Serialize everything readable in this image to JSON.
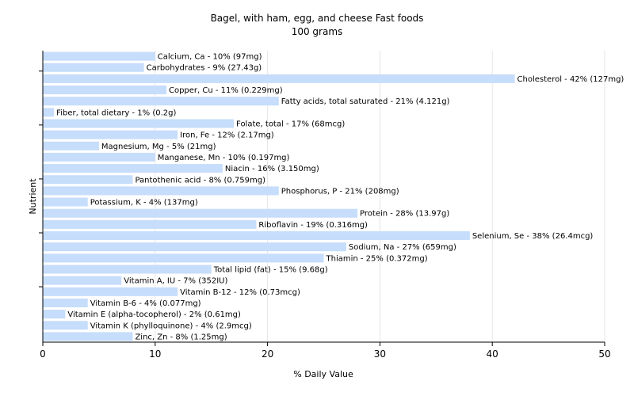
{
  "chart_data": {
    "type": "bar",
    "orientation": "horizontal",
    "title": "Bagel, with ham, egg, and cheese Fast foods",
    "subtitle": "100 grams",
    "xlabel": "% Daily Value",
    "ylabel": "Nutrient",
    "xlim": [
      0,
      50
    ],
    "xticks": [
      0,
      10,
      20,
      30,
      40,
      50
    ],
    "grid": "vertical",
    "bar_color": "#c6ddfb",
    "categories": [
      "Calcium, Ca",
      "Carbohydrates",
      "Cholesterol",
      "Copper, Cu",
      "Fatty acids, total saturated",
      "Fiber, total dietary",
      "Folate, total",
      "Iron, Fe",
      "Magnesium, Mg",
      "Manganese, Mn",
      "Niacin",
      "Pantothenic acid",
      "Phosphorus, P",
      "Potassium, K",
      "Protein",
      "Riboflavin",
      "Selenium, Se",
      "Sodium, Na",
      "Thiamin",
      "Total lipid (fat)",
      "Vitamin A, IU",
      "Vitamin B-12",
      "Vitamin B-6",
      "Vitamin E (alpha-tocopherol)",
      "Vitamin K (phylloquinone)",
      "Zinc, Zn"
    ],
    "values": [
      10,
      9,
      42,
      11,
      21,
      1,
      17,
      12,
      5,
      10,
      16,
      8,
      21,
      4,
      28,
      19,
      38,
      27,
      25,
      15,
      7,
      12,
      4,
      2,
      4,
      8
    ],
    "labels": [
      "Calcium, Ca - 10% (97mg)",
      "Carbohydrates - 9% (27.43g)",
      "Cholesterol - 42% (127mg)",
      "Copper, Cu - 11% (0.229mg)",
      "Fatty acids, total saturated - 21% (4.121g)",
      "Fiber, total dietary - 1% (0.2g)",
      "Folate, total - 17% (68mcg)",
      "Iron, Fe - 12% (2.17mg)",
      "Magnesium, Mg - 5% (21mg)",
      "Manganese, Mn - 10% (0.197mg)",
      "Niacin - 16% (3.150mg)",
      "Pantothenic acid - 8% (0.759mg)",
      "Phosphorus, P - 21% (208mg)",
      "Potassium, K - 4% (137mg)",
      "Protein - 28% (13.97g)",
      "Riboflavin - 19% (0.316mg)",
      "Selenium, Se - 38% (26.4mcg)",
      "Sodium, Na - 27% (659mg)",
      "Thiamin - 25% (0.372mg)",
      "Total lipid (fat) - 15% (9.68g)",
      "Vitamin A, IU - 7% (352IU)",
      "Vitamin B-12 - 12% (0.73mcg)",
      "Vitamin B-6 - 4% (0.077mg)",
      "Vitamin E (alpha-tocopherol) - 2% (0.61mg)",
      "Vitamin K (phylloquinone) - 4% (2.9mcg)",
      "Zinc, Zn - 8% (1.25mg)"
    ]
  }
}
